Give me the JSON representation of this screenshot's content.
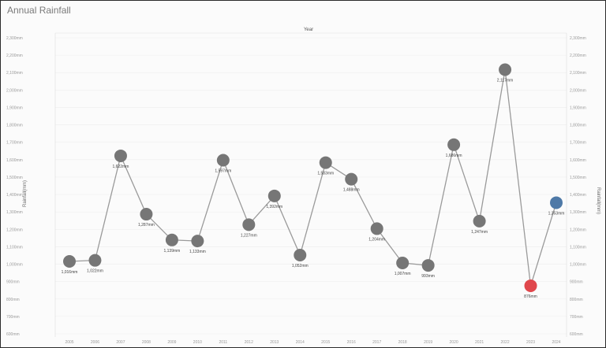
{
  "chart_data": {
    "type": "line",
    "title": "Annual Rainfall",
    "x_axis_title": "Year",
    "ylabel": "Rainfall(mm)",
    "categories": [
      "2005",
      "2006",
      "2007",
      "2008",
      "2009",
      "2010",
      "2011",
      "2012",
      "2013",
      "2014",
      "2015",
      "2016",
      "2017",
      "2018",
      "2019",
      "2020",
      "2021",
      "2022",
      "2023",
      "2024"
    ],
    "values": [
      1016,
      1022,
      1622,
      1287,
      1139,
      1133,
      1597,
      1227,
      1392,
      1052,
      1583,
      1488,
      1204,
      1007,
      993,
      1686,
      1247,
      2117,
      876,
      1353
    ],
    "value_labels": [
      "1,016mm",
      "1,022mm",
      "1,622mm",
      "1,287mm",
      "1,139mm",
      "1,133mm",
      "1,597mm",
      "1,227mm",
      "1,392mm",
      "1,052mm",
      "1,583mm",
      "1,488mm",
      "1,204mm",
      "1,007mm",
      "993mm",
      "1,686mm",
      "1,247mm",
      "2,117mm",
      "876mm",
      "1,353mm"
    ],
    "ylim": [
      600,
      2300
    ],
    "y_ticks": [
      600,
      700,
      800,
      900,
      1000,
      1100,
      1200,
      1300,
      1400,
      1500,
      1600,
      1700,
      1800,
      1900,
      2000,
      2100,
      2200,
      2300
    ],
    "y_tick_labels": [
      "600mm",
      "700mm",
      "800mm",
      "900mm",
      "1,000mm",
      "1,100mm",
      "1,200mm",
      "1,300mm",
      "1,400mm",
      "1,500mm",
      "1,600mm",
      "1,700mm",
      "1,800mm",
      "1,900mm",
      "2,000mm",
      "2,100mm",
      "2,200mm",
      "2,300mm"
    ],
    "grid": true,
    "colors": {
      "default_point": "#767676",
      "min_point": "#e0474c",
      "latest_point": "#4e79a7",
      "line": "#9a9a9a"
    },
    "highlight": {
      "min_index": 18,
      "latest_index": 19
    }
  }
}
